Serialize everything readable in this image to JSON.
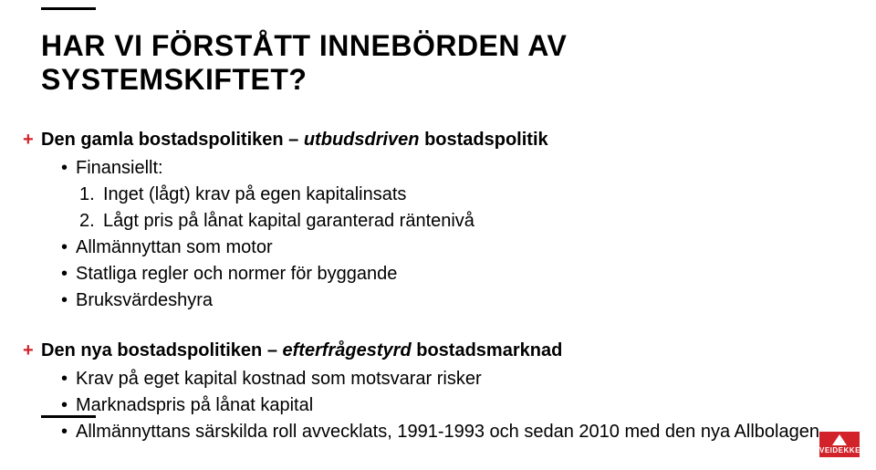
{
  "colors": {
    "accent": "#d2232a",
    "text": "#000000",
    "background": "#ffffff",
    "rule": "#000000"
  },
  "typography": {
    "title_fontsize": 32,
    "body_fontsize": 20,
    "font_family": "Arial"
  },
  "title": "HAR VI FÖRSTÅTT INNEBÖRDEN AV SYSTEMSKIFTET?",
  "block1": {
    "lead_bold": "Den gamla bostadspolitiken – ",
    "lead_italic": "utbudsdriven",
    "lead_bold_tail": " bostadspolitik",
    "items": {
      "b0": "Finansiellt:",
      "n1_num": "1.",
      "n1": "Inget (lågt) krav på egen kapitalinsats",
      "n2_num": "2.",
      "n2": "Lågt pris på lånat kapital garanterad räntenivå",
      "b1": "Allmännyttan som motor",
      "b2": "Statliga regler och normer för byggande",
      "b3": "Bruksvärdeshyra"
    }
  },
  "block2": {
    "lead_bold": "Den nya bostadspolitiken – ",
    "lead_italic": "efterfrågestyrd",
    "lead_bold_tail": " bostadsmarknad",
    "items": {
      "b0": "Krav på eget kapital kostnad som motsvarar risker",
      "b1": "Marknadspris på lånat kapital",
      "b2": "Allmännyttans särskilda roll avvecklats, 1991-1993 och sedan 2010 med den nya Allbolagen"
    }
  },
  "logo_text": "VEIDEKKE",
  "bullet_char": "•",
  "plus_char": "+"
}
